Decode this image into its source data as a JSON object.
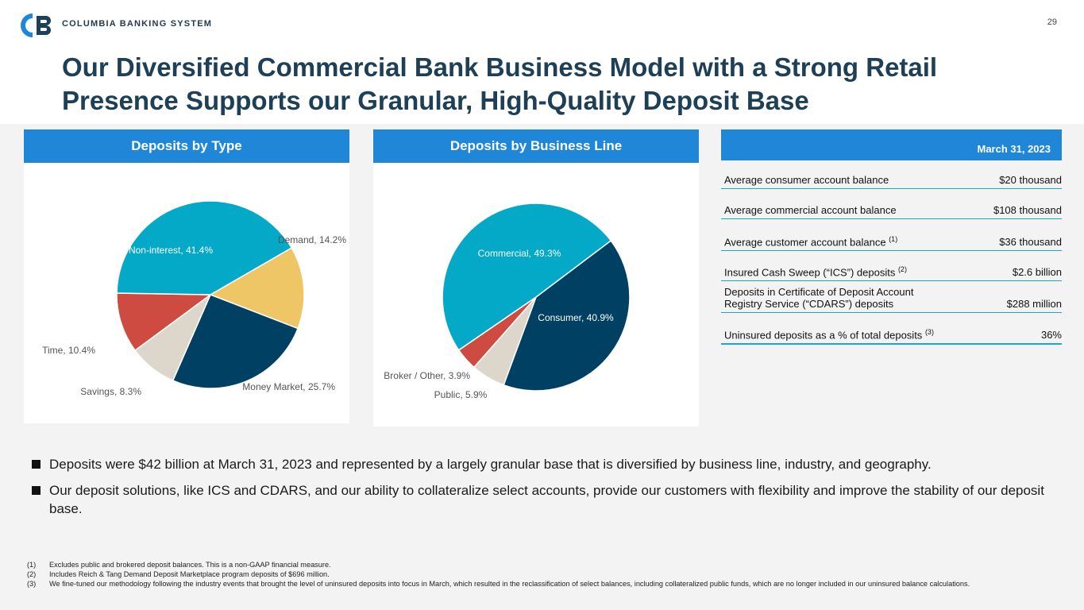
{
  "header": {
    "brand": "COLUMBIA BANKING SYSTEM",
    "page_number": "29",
    "title": "Our Diversified Commercial Bank Business Model with a Strong Retail Presence Supports our Granular, High-Quality Deposit Base"
  },
  "chart_data": [
    {
      "type": "pie",
      "title": "Deposits by Type",
      "slices": [
        {
          "label": "Demand, 14.2%",
          "value": 14.2,
          "color": "#eec666"
        },
        {
          "label": "Money Market, 25.7%",
          "value": 25.7,
          "color": "#004163"
        },
        {
          "label": "Savings, 8.3%",
          "value": 8.3,
          "color": "#dcd6cb"
        },
        {
          "label": "Time, 10.4%",
          "value": 10.4,
          "color": "#cd4b41"
        },
        {
          "label": "Non-interest, 41.4%",
          "value": 41.4,
          "color": "#04a9c8"
        }
      ]
    },
    {
      "type": "pie",
      "title": "Deposits by Business Line",
      "slices": [
        {
          "label": "Consumer, 40.9%",
          "value": 40.9,
          "color": "#004163"
        },
        {
          "label": "Public, 5.9%",
          "value": 5.9,
          "color": "#dcd6cb"
        },
        {
          "label": "Broker / Other, 3.9%",
          "value": 3.9,
          "color": "#cd4b41"
        },
        {
          "label": "Commercial, 49.3%",
          "value": 49.3,
          "color": "#04a9c8"
        }
      ]
    }
  ],
  "table": {
    "header": "March 31, 2023",
    "rows": [
      {
        "label": "Average consumer account balance",
        "note": "",
        "value": "$20 thousand"
      },
      {
        "label": "Average commercial account balance",
        "note": "",
        "value": "$108 thousand"
      },
      {
        "label": "Average customer account balance",
        "note": "(1)",
        "value": "$36 thousand"
      },
      {
        "label": "Insured Cash Sweep (“ICS”) deposits",
        "note": "(2)",
        "value": "$2.6 billion"
      },
      {
        "label": "Deposits in Certificate of Deposit Account Registry Service (“CDARS”) deposits",
        "note": "",
        "value": "$288 million"
      },
      {
        "label": "Uninsured deposits as a % of total deposits",
        "note": "(3)",
        "value": "36%"
      }
    ]
  },
  "bullets": [
    "Deposits were $42 billion at March 31, 2023 and represented by a largely granular base that is diversified by business line, industry, and geography.",
    "Our deposit solutions, like ICS and CDARS, and our ability to collateralize select accounts, provide our customers with flexibility and improve the stability of our deposit base."
  ],
  "footnotes": [
    {
      "n": "(1)",
      "text": "Excludes public and brokered deposit balances. This is a non-GAAP financial measure."
    },
    {
      "n": "(2)",
      "text": "Includes Reich & Tang Demand Deposit Marketplace program deposits of $696 million."
    },
    {
      "n": "(3)",
      "text": "We fine-tuned our methodology following the industry events that brought the level of uninsured deposits into focus in March, which resulted in the reclassification of select balances, including collateralized public funds, which are no longer included in our uninsured balance calculations."
    }
  ]
}
